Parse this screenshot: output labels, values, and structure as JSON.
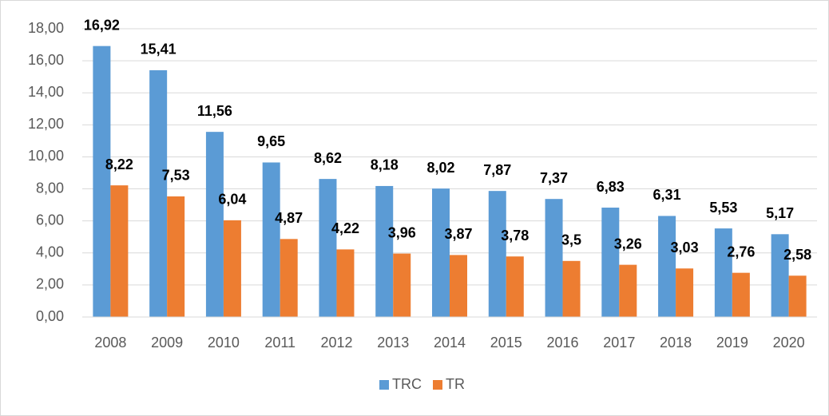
{
  "chart_data": {
    "type": "bar",
    "categories": [
      "2008",
      "2009",
      "2010",
      "2011",
      "2012",
      "2013",
      "2014",
      "2015",
      "2016",
      "2017",
      "2018",
      "2019",
      "2020"
    ],
    "series": [
      {
        "name": "TRC",
        "color": "#5b9bd5",
        "values": [
          16.92,
          15.41,
          11.56,
          9.65,
          8.62,
          8.18,
          8.02,
          7.87,
          7.37,
          6.83,
          6.31,
          5.53,
          5.17
        ],
        "value_labels": [
          "16,92",
          "15,41",
          "11,56",
          "9,65",
          "8,62",
          "8,18",
          "8,02",
          "7,87",
          "7,37",
          "6,83",
          "6,31",
          "5,53",
          "5,17"
        ]
      },
      {
        "name": "TR",
        "color": "#ed7d31",
        "values": [
          8.22,
          7.53,
          6.04,
          4.87,
          4.22,
          3.96,
          3.87,
          3.78,
          3.5,
          3.26,
          3.03,
          2.76,
          2.58
        ],
        "value_labels": [
          "8,22",
          "7,53",
          "6,04",
          "4,87",
          "4,22",
          "3,96",
          "3,87",
          "3,78",
          "3,5",
          "3,26",
          "3,03",
          "2,76",
          "2,58"
        ]
      }
    ],
    "ylim": [
      0,
      18
    ],
    "yticks": [
      {
        "value": 0,
        "label": "0,00"
      },
      {
        "value": 2,
        "label": "2,00"
      },
      {
        "value": 4,
        "label": "4,00"
      },
      {
        "value": 6,
        "label": "6,00"
      },
      {
        "value": 8,
        "label": "8,00"
      },
      {
        "value": 10,
        "label": "10,00"
      },
      {
        "value": 12,
        "label": "12,00"
      },
      {
        "value": 14,
        "label": "14,00"
      },
      {
        "value": 16,
        "label": "16,00"
      },
      {
        "value": 18,
        "label": "18,00"
      }
    ],
    "grid": true,
    "legend": "bottom"
  }
}
